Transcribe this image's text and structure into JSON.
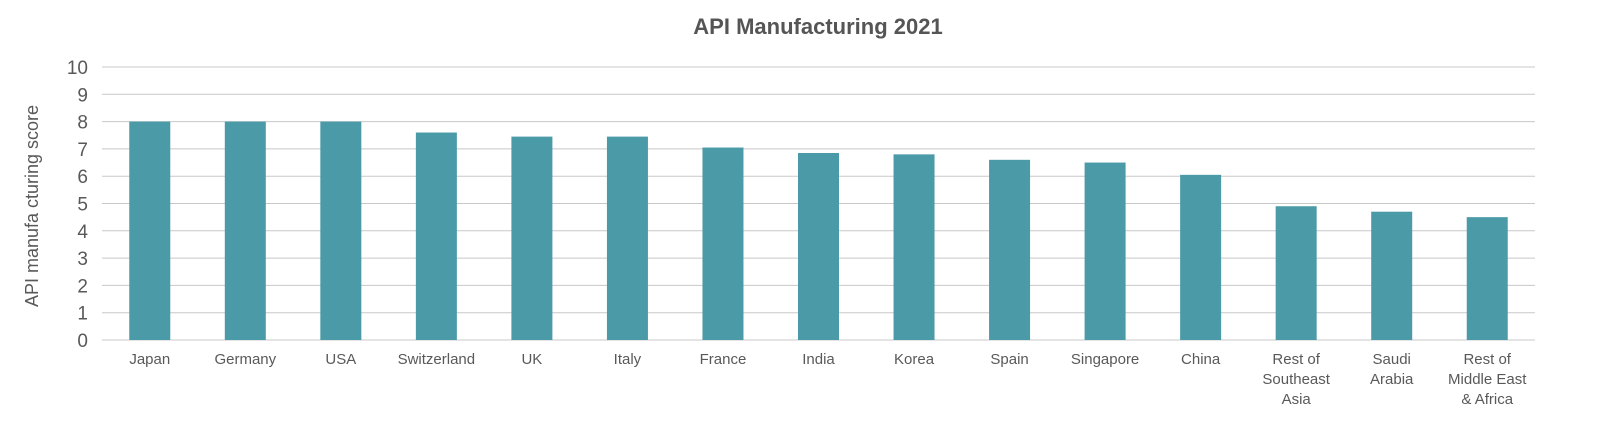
{
  "chart_data": {
    "type": "bar",
    "title": "API Manufacturing 2021",
    "xlabel": "",
    "ylabel": "API manufa cturing score",
    "ylim": [
      0,
      10
    ],
    "yticks": [
      0,
      1,
      2,
      3,
      4,
      5,
      6,
      7,
      8,
      9,
      10
    ],
    "grid": true,
    "legend": "none",
    "bar_color": "#4a9aa8",
    "grid_color": "#c8c8c8",
    "categories": [
      "Japan",
      "Germany",
      "USA",
      "Switzerland",
      "UK",
      "Italy",
      "France",
      "India",
      "Korea",
      "Spain",
      "Singapore",
      "China",
      "Rest of Southeast Asia",
      "Saudi Arabia",
      "Rest of Middle East & Africa"
    ],
    "category_label_lines": [
      [
        "Japan"
      ],
      [
        "Germany"
      ],
      [
        "USA"
      ],
      [
        "Switzerland"
      ],
      [
        "UK"
      ],
      [
        "Italy"
      ],
      [
        "France"
      ],
      [
        "India"
      ],
      [
        "Korea"
      ],
      [
        "Spain"
      ],
      [
        "Singapore"
      ],
      [
        "China"
      ],
      [
        "Rest of",
        "Southeast",
        "Asia"
      ],
      [
        "Saudi",
        "Arabia"
      ],
      [
        "Rest of",
        "Middle East",
        "& Africa"
      ]
    ],
    "values": [
      8.0,
      8.0,
      8.0,
      7.6,
      7.45,
      7.45,
      7.05,
      6.85,
      6.8,
      6.6,
      6.5,
      6.05,
      4.9,
      4.7,
      4.5
    ]
  }
}
